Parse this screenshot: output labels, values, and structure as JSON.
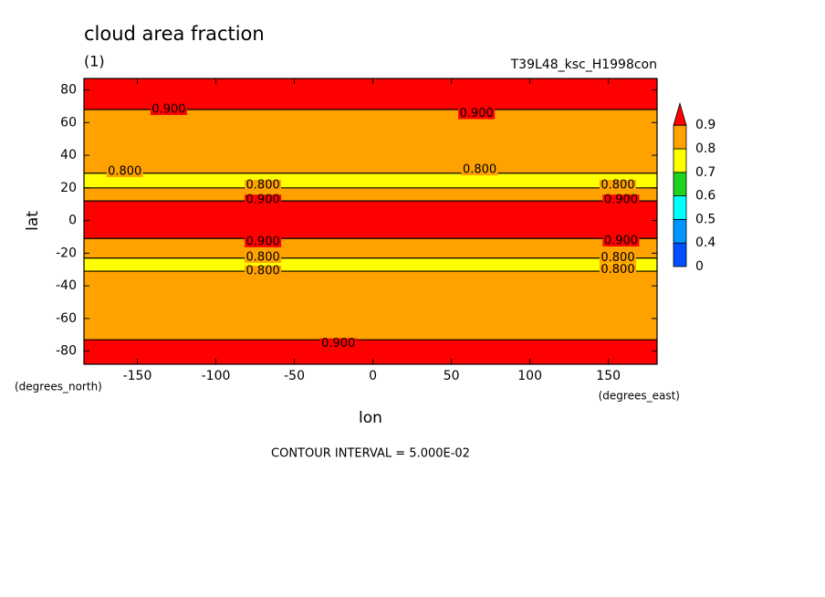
{
  "chart_data": {
    "type": "contour",
    "title": "cloud area fraction",
    "subtitle": "(1)",
    "run_label": "T39L48_ksc_H1998con",
    "xlabel": "lon",
    "ylabel": "lat",
    "xunit": "(degrees_east)",
    "yunit": "(degrees_north)",
    "footer": "CONTOUR INTERVAL = 5.000E-02",
    "xlim": [
      -184,
      181
    ],
    "ylim": [
      -88,
      87
    ],
    "xticks": [
      -150,
      -100,
      -50,
      0,
      50,
      100,
      150
    ],
    "yticks": [
      -80,
      -60,
      -40,
      -20,
      0,
      20,
      40,
      60,
      80
    ],
    "levels": [
      0,
      0.4,
      0.5,
      0.6,
      0.7,
      0.8,
      0.9
    ],
    "colors": [
      "#0050ff",
      "#0096ff",
      "#00ffff",
      "#1ed21e",
      "#ffff00",
      "#ffa200",
      "#ff0000"
    ],
    "bands": [
      {
        "lat": [
          68,
          87
        ],
        "level": 0.9
      },
      {
        "lat": [
          29,
          68
        ],
        "level": 0.8
      },
      {
        "lat": [
          20,
          29
        ],
        "level": 0.7
      },
      {
        "lat": [
          12,
          20
        ],
        "level": 0.8
      },
      {
        "lat": [
          -11,
          12
        ],
        "level": 0.9
      },
      {
        "lat": [
          -23,
          -11
        ],
        "level": 0.8
      },
      {
        "lat": [
          -31,
          -23
        ],
        "level": 0.7
      },
      {
        "lat": [
          -73,
          -31
        ],
        "level": 0.8
      },
      {
        "lat": [
          -88,
          -73
        ],
        "level": 0.9
      }
    ],
    "contour_labels": [
      {
        "value": 0.9,
        "label": "0.900",
        "lon": -130,
        "lat": 68
      },
      {
        "value": 0.9,
        "label": "0.900",
        "lon": 66,
        "lat": 65.5
      },
      {
        "value": 0.8,
        "label": "0.800",
        "lon": -158,
        "lat": 30
      },
      {
        "value": 0.8,
        "label": "0.800",
        "lon": 68,
        "lat": 31
      },
      {
        "value": 0.8,
        "label": "0.800",
        "lon": -70,
        "lat": 21.5
      },
      {
        "value": 0.8,
        "label": "0.800",
        "lon": 156,
        "lat": 21.5
      },
      {
        "value": 0.9,
        "label": "0.900",
        "lon": -70,
        "lat": 12.5
      },
      {
        "value": 0.9,
        "label": "0.900",
        "lon": 158,
        "lat": 12.5
      },
      {
        "value": 0.9,
        "label": "0.900",
        "lon": -70,
        "lat": -13
      },
      {
        "value": 0.9,
        "label": "0.900",
        "lon": 158,
        "lat": -12.5
      },
      {
        "value": 0.8,
        "label": "0.800",
        "lon": -70,
        "lat": -22.5
      },
      {
        "value": 0.8,
        "label": "0.800",
        "lon": 156,
        "lat": -23
      },
      {
        "value": 0.8,
        "label": "0.800",
        "lon": -70,
        "lat": -31
      },
      {
        "value": 0.8,
        "label": "0.800",
        "lon": 156,
        "lat": -30
      },
      {
        "value": 0.9,
        "label": "0.900",
        "lon": -22,
        "lat": -75.5
      }
    ]
  }
}
